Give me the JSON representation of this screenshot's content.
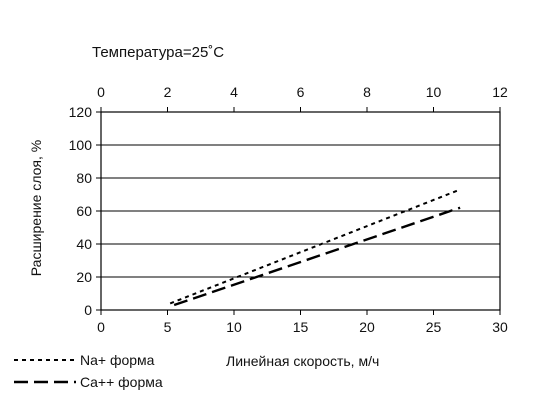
{
  "chart_data": {
    "type": "line",
    "title": "Температура=25˚С",
    "xlabel": "Линейная скорость, м/ч",
    "ylabel": "Расширение слоя, %",
    "xlim": [
      0,
      30
    ],
    "x_ticks": [
      0,
      5,
      10,
      15,
      20,
      25,
      30
    ],
    "ylim": [
      0,
      120
    ],
    "y_ticks": [
      0,
      20,
      40,
      60,
      80,
      100,
      120
    ],
    "x2lim": [
      0,
      12
    ],
    "x2_ticks": [
      0,
      2,
      4,
      6,
      8,
      10,
      12
    ],
    "grid": "horizontal",
    "legend_position": "bottom-left",
    "series": [
      {
        "name": "Na+ форма",
        "style": "dotted",
        "color": "#000000",
        "x": [
          5.2,
          27.0
        ],
        "y": [
          4,
          73
        ]
      },
      {
        "name": "Ca++ форма",
        "style": "dashed",
        "color": "#000000",
        "x": [
          5.5,
          27.0
        ],
        "y": [
          3,
          62
        ]
      }
    ]
  }
}
